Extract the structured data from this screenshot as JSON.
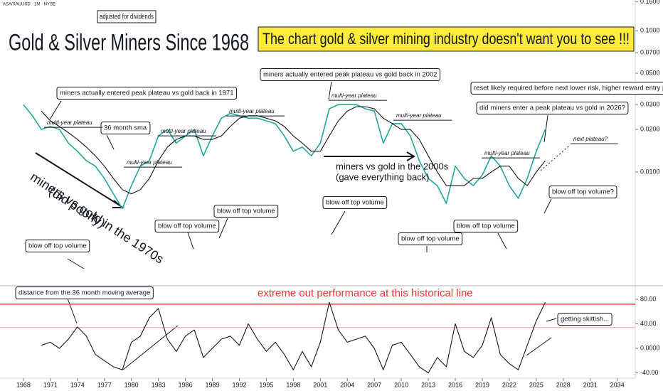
{
  "header": "ASA/XAUUSD · 1M · NYSE",
  "banner": "The chart gold & silver mining industry doesn't want you to see !!!",
  "annotations": [
    {
      "text": "miners actually entered peak plateau vs gold back in 1971"
    },
    {
      "text": "36 month sma"
    },
    {
      "text": "multi-year plateau"
    },
    {
      "text": "multi-year plateau"
    },
    {
      "text": "multi-year plateau"
    },
    {
      "text": "multi-year plateau"
    },
    {
      "text": "multi-year plateau"
    },
    {
      "text": "multi-year plateau"
    },
    {
      "text": "multi-year plateau"
    },
    {
      "text": "miners actually entered peak plateau vs gold back in 2002"
    },
    {
      "text": "reset likely required before next lower risk, higher reward entry point"
    },
    {
      "text": "did miners enter a peak plateau vs gold in 2026?"
    },
    {
      "text": "next plateau?"
    },
    {
      "text": "miners vs gold in the 2000s"
    },
    {
      "text": "(gave everything back)"
    },
    {
      "text": "miners vs gold in the 1970s"
    },
    {
      "text": "(did poorly)"
    },
    {
      "text": "blow off top volume"
    },
    {
      "text": "blow off top volume"
    },
    {
      "text": "blow off top volume"
    },
    {
      "text": "blow off top volume"
    },
    {
      "text": "blow off top volume"
    },
    {
      "text": "blow off top volume"
    },
    {
      "text": "blow off top volume?"
    },
    {
      "text": "extreme out performance at this historical line"
    },
    {
      "text": "getting skittish..."
    }
  ],
  "chart_data": [
    {
      "type": "line",
      "title": "Gold & Silver Miners Since 1968",
      "subtitle": "adjusted for dividends",
      "log_scale": true,
      "x": [
        1968,
        1969,
        1970,
        1971,
        1972,
        1973,
        1974,
        1975,
        1976,
        1977,
        1978,
        1979,
        1980,
        1981,
        1982,
        1983,
        1984,
        1985,
        1986,
        1987,
        1988,
        1989,
        1990,
        1991,
        1992,
        1993,
        1994,
        1995,
        1996,
        1997,
        1998,
        1999,
        2000,
        2001,
        2002,
        2003,
        2004,
        2005,
        2006,
        2007,
        2008,
        2009,
        2010,
        2011,
        2012,
        2013,
        2014,
        2015,
        2016,
        2017,
        2018,
        2019,
        2020,
        2021,
        2022,
        2023,
        2024,
        2025,
        2026
      ],
      "series": [
        {
          "color": "#26a69a",
          "values": [
            0.03,
            0.025,
            0.02,
            0.021,
            0.02,
            0.016,
            0.014,
            0.012,
            0.011,
            0.009,
            0.007,
            0.0055,
            0.008,
            0.011,
            0.012,
            0.018,
            0.02,
            0.016,
            0.018,
            0.02,
            0.013,
            0.018,
            0.024,
            0.026,
            0.025,
            0.024,
            0.024,
            0.023,
            0.022,
            0.018,
            0.014,
            0.015,
            0.013,
            0.016,
            0.028,
            0.03,
            0.03,
            0.03,
            0.028,
            0.027,
            0.016,
            0.022,
            0.022,
            0.018,
            0.012,
            0.009,
            0.008,
            0.006,
            0.011,
            0.009,
            0.008,
            0.0095,
            0.013,
            0.011,
            0.008,
            0.0065,
            0.009,
            0.014,
            0.02
          ]
        },
        {
          "color": "#131722",
          "values": [
            null,
            null,
            0.027,
            0.023,
            0.021,
            0.019,
            0.017,
            0.015,
            0.013,
            0.011,
            0.009,
            0.0075,
            0.007,
            0.0075,
            0.009,
            0.012,
            0.015,
            0.017,
            0.018,
            0.018,
            0.017,
            0.017,
            0.018,
            0.021,
            0.024,
            0.025,
            0.025,
            0.024,
            0.023,
            0.021,
            0.018,
            0.016,
            0.014,
            0.014,
            0.018,
            0.023,
            0.027,
            0.029,
            0.029,
            0.028,
            0.024,
            0.022,
            0.02,
            0.02,
            0.017,
            0.013,
            0.01,
            0.008,
            0.008,
            0.008,
            0.009,
            0.009,
            0.01,
            0.011,
            0.011,
            0.009,
            0.008,
            0.01,
            0.012
          ]
        }
      ],
      "xlim": [
        1965.4,
        2036
      ],
      "ylim": [
        0.0016,
        0.165
      ],
      "yticks": [
        {
          "value": 0.01,
          "label": "0.0100"
        },
        {
          "value": 0.02,
          "label": "0.0200"
        },
        {
          "value": 0.03,
          "label": "0.0300"
        },
        {
          "value": 0.05,
          "label": "0.0500"
        },
        {
          "value": 0.07,
          "label": "0.0700"
        },
        {
          "value": 0.1,
          "label": "0.1000"
        },
        {
          "value": 0.16,
          "label": "0.1600"
        }
      ]
    },
    {
      "type": "line",
      "title": "distance from the 36 month moving average",
      "x": [
        1968,
        1969,
        1970,
        1971,
        1972,
        1973,
        1974,
        1975,
        1976,
        1977,
        1978,
        1979,
        1980,
        1981,
        1982,
        1983,
        1984,
        1985,
        1986,
        1987,
        1988,
        1989,
        1990,
        1991,
        1992,
        1993,
        1994,
        1995,
        1996,
        1997,
        1998,
        1999,
        2000,
        2001,
        2002,
        2003,
        2004,
        2005,
        2006,
        2007,
        2008,
        2009,
        2010,
        2011,
        2012,
        2013,
        2014,
        2015,
        2016,
        2017,
        2018,
        2019,
        2020,
        2021,
        2022,
        2023,
        2024,
        2025,
        2026
      ],
      "series": [
        {
          "color": "#131722",
          "values": [
            null,
            null,
            5,
            10,
            0,
            15,
            35,
            20,
            -10,
            -20,
            -30,
            -35,
            10,
            20,
            50,
            65,
            15,
            -5,
            20,
            30,
            -15,
            0,
            15,
            20,
            5,
            40,
            15,
            -5,
            10,
            -10,
            -35,
            -5,
            -30,
            10,
            75,
            30,
            10,
            15,
            20,
            0,
            -35,
            5,
            10,
            -10,
            -30,
            -40,
            -15,
            -30,
            40,
            -5,
            -15,
            5,
            50,
            -10,
            -25,
            -35,
            5,
            45,
            75
          ]
        }
      ],
      "hlines": [
        {
          "value": 72,
          "color": "#e53935"
        },
        {
          "value": 34,
          "color": "#f5a3ab"
        }
      ],
      "xlim": [
        1965.4,
        2036
      ],
      "ylim": [
        -48.7,
        98.6
      ],
      "yticks": [
        {
          "value": -40,
          "label": "-40.00"
        },
        {
          "value": 0,
          "label": "0.0000"
        },
        {
          "value": 40,
          "label": "40.00"
        },
        {
          "value": 80,
          "label": "80.00"
        }
      ],
      "xticks": [
        1968,
        1971,
        1974,
        1977,
        1980,
        1983,
        1986,
        1989,
        1992,
        1995,
        1998,
        2001,
        2004,
        2007,
        2010,
        2013,
        2016,
        2019,
        2022,
        2025,
        2028,
        2031,
        2034
      ]
    }
  ]
}
